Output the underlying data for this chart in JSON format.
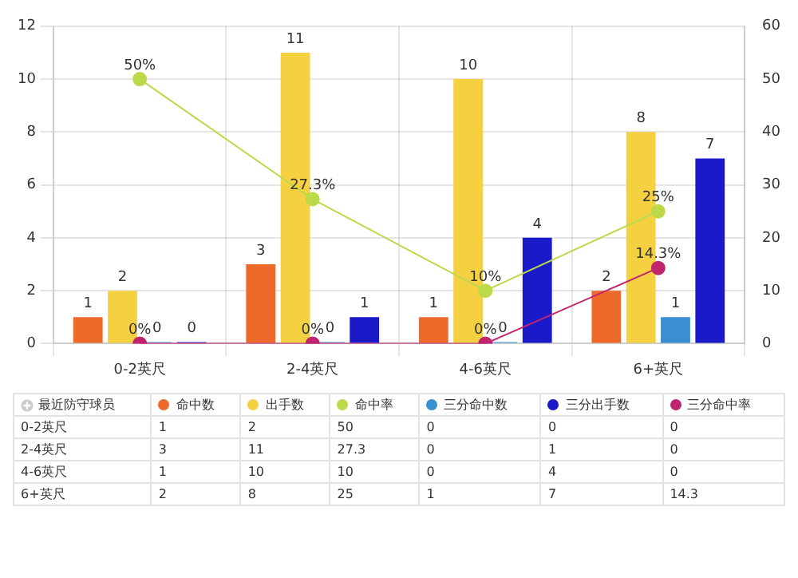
{
  "chart_data": [
    {
      "type": "bar",
      "categories": [
        "0-2英尺",
        "2-4英尺",
        "4-6英尺",
        "6+英尺"
      ],
      "series": [
        {
          "color": "#ee6a2a",
          "values": [
            1,
            3,
            1,
            2
          ]
        },
        {
          "color": "#f5d142",
          "values": [
            2,
            11,
            10,
            8
          ]
        },
        {
          "type": "line",
          "axis": "y2",
          "color": "#bcd94a",
          "values": [
            50,
            27.3,
            10,
            25
          ],
          "value_labels": [
            "50%",
            "27.3%",
            "10%",
            "25%"
          ]
        },
        {
          "color": "#3a8fd0",
          "values": [
            0,
            0,
            0,
            1
          ]
        },
        {
          "color": "#1a1ac8",
          "values": [
            0,
            1,
            4,
            7
          ]
        },
        {
          "type": "line",
          "axis": "y2",
          "color": "#c0266e",
          "values": [
            0,
            0,
            0,
            14.3
          ],
          "value_labels": [
            "0%",
            "0%",
            "0%",
            "14.3%"
          ]
        }
      ],
      "ylim": [
        0,
        12
      ],
      "yticks": [
        0,
        2,
        4,
        6,
        8,
        10,
        12
      ],
      "y2lim": [
        0,
        60
      ],
      "y2ticks": [
        0,
        10,
        20,
        30,
        40,
        50,
        60
      ],
      "grid": true,
      "marker": "circle",
      "data_labels": true
    },
    {
      "type": "other",
      "categories": [
        "0-2英尺",
        "2-4英尺",
        "4-6英尺",
        "6+英尺"
      ],
      "xlabel": "最近防守球员",
      "series": [
        {
          "name": "命中数",
          "color": "#ee6a2a",
          "values": [
            1,
            3,
            1,
            2
          ]
        },
        {
          "name": "出手数",
          "color": "#f5d142",
          "values": [
            2,
            11,
            10,
            8
          ]
        },
        {
          "name": "命中率",
          "color": "#bcd94a",
          "values": [
            50,
            27.3,
            10,
            25
          ]
        },
        {
          "name": "三分命中数",
          "color": "#3a8fd0",
          "values": [
            0,
            0,
            0,
            1
          ]
        },
        {
          "name": "三分出手数",
          "color": "#1a1ac8",
          "values": [
            0,
            1,
            4,
            7
          ]
        },
        {
          "name": "三分命中率",
          "color": "#c0266e",
          "values": [
            0,
            0,
            0,
            14.3
          ]
        }
      ],
      "legend": "top",
      "data_labels": true
    }
  ]
}
